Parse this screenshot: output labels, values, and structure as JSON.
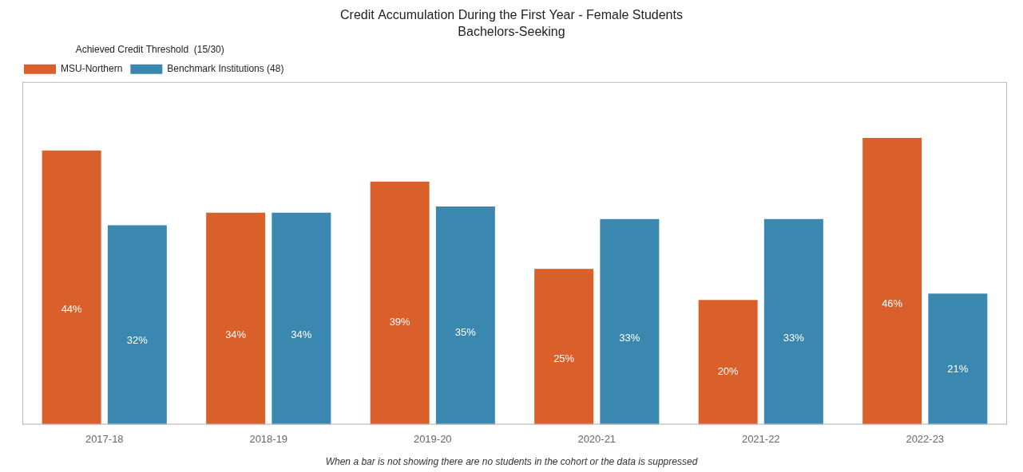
{
  "chart_data": {
    "type": "bar",
    "title": "Credit Accumulation During the First Year - Female Students",
    "subtitle": "Bachelors-Seeking",
    "categories": [
      "2017-18",
      "2018-19",
      "2019-20",
      "2020-21",
      "2021-22",
      "2022-23"
    ],
    "series": [
      {
        "name": "MSU-Northern",
        "color": "#D95F2B",
        "values": [
          44,
          34,
          39,
          25,
          20,
          46
        ],
        "value_labels": [
          "44%",
          "34%",
          "39%",
          "25%",
          "20%",
          "46%"
        ]
      },
      {
        "name": "Benchmark Institutions (48)",
        "color": "#3A87B0",
        "values": [
          32,
          34,
          35,
          33,
          33,
          21
        ],
        "value_labels": [
          "32%",
          "34%",
          "35%",
          "33%",
          "33%",
          "21%"
        ]
      }
    ],
    "ylim": [
      0,
      55
    ],
    "yticks": [],
    "grid": false,
    "legend": "upper left",
    "legend_title": "Achieved Credit Threshold  (15/30)",
    "tick_labels": "x",
    "data_labels": true,
    "footnote": "When a bar is not showing there are no students in the cohort or the data is suppressed"
  }
}
